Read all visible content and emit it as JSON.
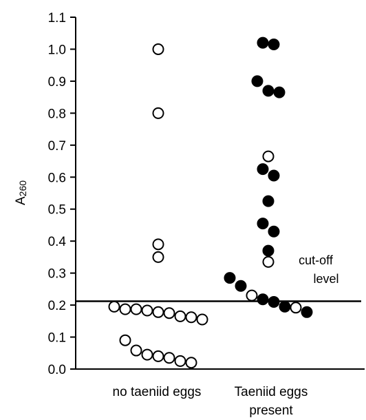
{
  "chart_data": {
    "type": "scatter",
    "title": "",
    "xlabel": "",
    "ylabel": "A260",
    "ylim": [
      0.0,
      1.1
    ],
    "yticks": [
      "0.0",
      "0.1",
      "0.2",
      "0.3",
      "0.4",
      "0.5",
      "0.6",
      "0.7",
      "0.8",
      "0.9",
      "1.0",
      "1.1"
    ],
    "categories": [
      {
        "line1": "no taeniid eggs",
        "line2": ""
      },
      {
        "line1": "Taeniid eggs",
        "line2": "present"
      }
    ],
    "cutoff": {
      "value": 0.212,
      "label_line1": "cut-off",
      "label_line2": "level"
    },
    "grid": false,
    "points": [
      {
        "group": 0,
        "y": 1.0,
        "filled": false
      },
      {
        "group": 0,
        "y": 0.8,
        "filled": false
      },
      {
        "group": 0,
        "y": 0.39,
        "filled": false
      },
      {
        "group": 0,
        "y": 0.35,
        "filled": false
      },
      {
        "group": 0,
        "y": 0.195,
        "filled": false
      },
      {
        "group": 0,
        "y": 0.187,
        "filled": false
      },
      {
        "group": 0,
        "y": 0.187,
        "filled": false
      },
      {
        "group": 0,
        "y": 0.183,
        "filled": false
      },
      {
        "group": 0,
        "y": 0.178,
        "filled": false
      },
      {
        "group": 0,
        "y": 0.175,
        "filled": false
      },
      {
        "group": 0,
        "y": 0.165,
        "filled": false
      },
      {
        "group": 0,
        "y": 0.162,
        "filled": false
      },
      {
        "group": 0,
        "y": 0.155,
        "filled": false
      },
      {
        "group": 0,
        "y": 0.09,
        "filled": false
      },
      {
        "group": 0,
        "y": 0.058,
        "filled": false
      },
      {
        "group": 0,
        "y": 0.045,
        "filled": false
      },
      {
        "group": 0,
        "y": 0.04,
        "filled": false
      },
      {
        "group": 0,
        "y": 0.035,
        "filled": false
      },
      {
        "group": 0,
        "y": 0.025,
        "filled": false
      },
      {
        "group": 0,
        "y": 0.02,
        "filled": false
      },
      {
        "group": 1,
        "y": 1.02,
        "filled": true
      },
      {
        "group": 1,
        "y": 1.015,
        "filled": true
      },
      {
        "group": 1,
        "y": 0.9,
        "filled": true
      },
      {
        "group": 1,
        "y": 0.87,
        "filled": true
      },
      {
        "group": 1,
        "y": 0.865,
        "filled": true
      },
      {
        "group": 1,
        "y": 0.665,
        "filled": false
      },
      {
        "group": 1,
        "y": 0.625,
        "filled": true
      },
      {
        "group": 1,
        "y": 0.605,
        "filled": true
      },
      {
        "group": 1,
        "y": 0.525,
        "filled": true
      },
      {
        "group": 1,
        "y": 0.455,
        "filled": true
      },
      {
        "group": 1,
        "y": 0.43,
        "filled": true
      },
      {
        "group": 1,
        "y": 0.37,
        "filled": true
      },
      {
        "group": 1,
        "y": 0.335,
        "filled": false
      },
      {
        "group": 1,
        "y": 0.285,
        "filled": true
      },
      {
        "group": 1,
        "y": 0.26,
        "filled": true
      },
      {
        "group": 1,
        "y": 0.23,
        "filled": false
      },
      {
        "group": 1,
        "y": 0.218,
        "filled": true
      },
      {
        "group": 1,
        "y": 0.21,
        "filled": true
      },
      {
        "group": 1,
        "y": 0.195,
        "filled": true
      },
      {
        "group": 1,
        "y": 0.192,
        "filled": false
      },
      {
        "group": 1,
        "y": 0.178,
        "filled": true
      }
    ]
  }
}
